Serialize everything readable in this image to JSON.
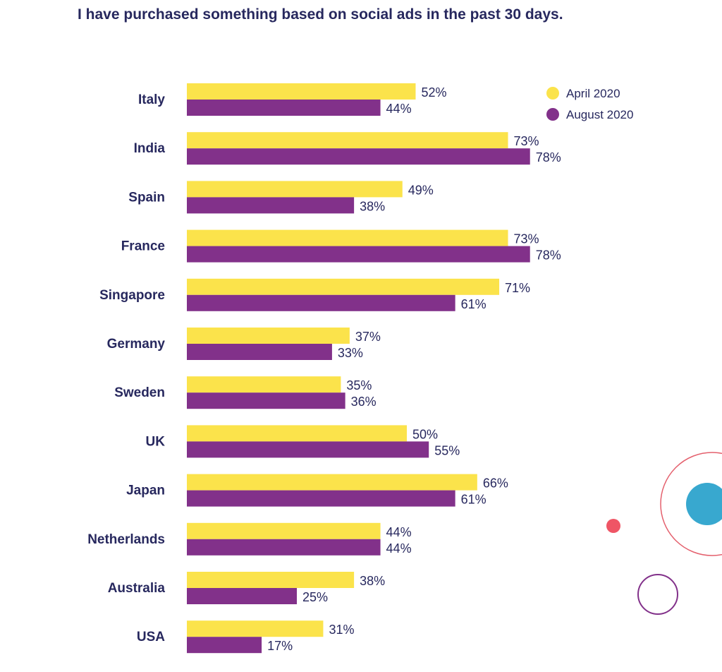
{
  "chart_data": {
    "type": "bar",
    "orientation": "horizontal",
    "title": "I have purchased something based on social ads in the past 30 days.",
    "xlabel": "",
    "ylabel": "",
    "xlim": [
      0,
      100
    ],
    "value_suffix": "%",
    "grid": false,
    "legend_position": "top-right",
    "categories": [
      "Italy",
      "India",
      "Spain",
      "France",
      "Singapore",
      "Germany",
      "Sweden",
      "UK",
      "Japan",
      "Netherlands",
      "Australia",
      "USA"
    ],
    "series": [
      {
        "name": "April 2020",
        "color": "#fbe34b",
        "values": [
          52,
          73,
          49,
          73,
          71,
          37,
          35,
          50,
          66,
          44,
          38,
          31
        ]
      },
      {
        "name": "August 2020",
        "color": "#82318a",
        "values": [
          44,
          78,
          38,
          78,
          61,
          33,
          36,
          55,
          61,
          44,
          25,
          17
        ]
      }
    ]
  },
  "colors": {
    "text": "#27285e",
    "decoration_ring": "#e4606d",
    "decoration_dot_pink": "#ef5565",
    "decoration_dot_blue": "#38a8cf",
    "decoration_ring_purple": "#82318a"
  }
}
